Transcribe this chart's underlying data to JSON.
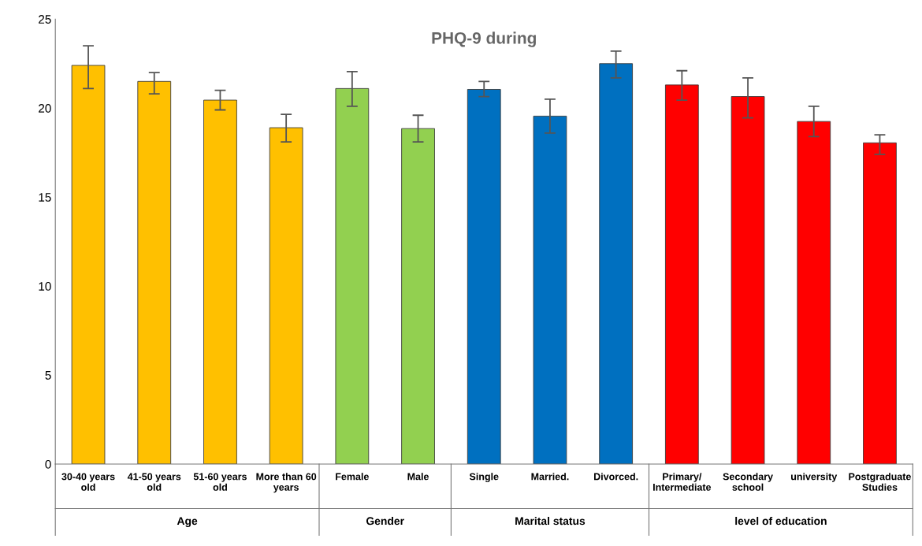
{
  "chart_data": {
    "type": "bar",
    "title": "PHQ-9 during",
    "categories": [
      "30-40 years\nold",
      "41-50 years\nold",
      "51-60 years\nold",
      "More than 60\nyears",
      "Female",
      "Male",
      "Single",
      "Married.",
      "Divorced.",
      "Primary/\nIntermediate",
      "Secondary\nschool",
      "university",
      "Postgraduate\nStudies"
    ],
    "values": [
      22.4,
      21.5,
      20.45,
      18.9,
      21.1,
      18.85,
      21.05,
      19.55,
      22.5,
      21.3,
      20.65,
      19.25,
      18.05
    ],
    "errors": [
      [
        21.1,
        23.5
      ],
      [
        20.8,
        22.0
      ],
      [
        19.9,
        21.0
      ],
      [
        18.1,
        19.65
      ],
      [
        20.1,
        22.05
      ],
      [
        18.1,
        19.6
      ],
      [
        20.65,
        21.5
      ],
      [
        18.6,
        20.5
      ],
      [
        21.7,
        23.2
      ],
      [
        20.45,
        22.1
      ],
      [
        19.45,
        21.7
      ],
      [
        18.4,
        20.1
      ],
      [
        17.4,
        18.5
      ]
    ],
    "colors": [
      "#ffc000",
      "#ffc000",
      "#ffc000",
      "#ffc000",
      "#92d050",
      "#92d050",
      "#0070c0",
      "#0070c0",
      "#0070c0",
      "#ff0000",
      "#ff0000",
      "#ff0000",
      "#ff0000"
    ],
    "annotations": [
      "Age",
      "Gender",
      "Marital status",
      "level of education"
    ],
    "ylim": [
      0,
      25
    ],
    "yticks": [
      0,
      5,
      10,
      15,
      20,
      25
    ],
    "grid": false
  }
}
